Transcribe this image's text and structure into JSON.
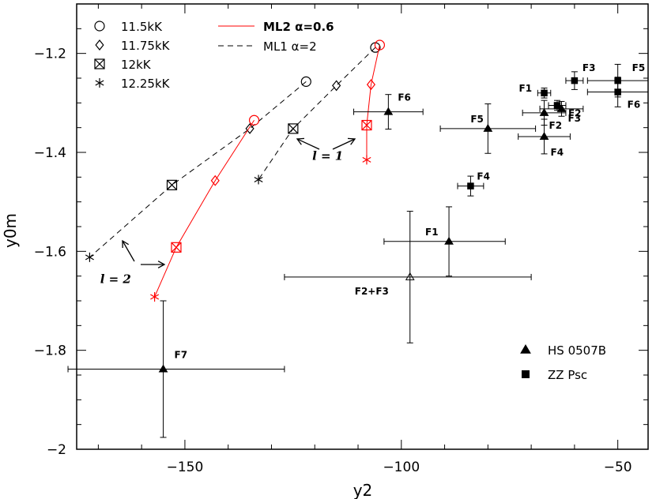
{
  "chart_data": {
    "type": "scatter",
    "xlabel": "y2",
    "ylabel": "y0m",
    "xlim": [
      -175,
      -43
    ],
    "ylim": [
      -2.0,
      -1.1
    ],
    "xticks": [
      -150,
      -100,
      -50
    ],
    "yticks": [
      -2.0,
      -1.8,
      -1.6,
      -1.4,
      -1.2
    ],
    "xtick_labels": [
      "−150",
      "−100",
      "−50"
    ],
    "ytick_labels": [
      "−2",
      "−1.8",
      "−1.6",
      "−1.4",
      "−1.2"
    ],
    "grid": false,
    "temperature_legend": [
      {
        "marker": "circle",
        "label": "11.5kK"
      },
      {
        "marker": "diamond",
        "label": "11.75kK"
      },
      {
        "marker": "boxx",
        "label": "12kK"
      },
      {
        "marker": "asterisk",
        "label": "12.25kK"
      }
    ],
    "model_legend": [
      {
        "label": "ML2  α=0.6",
        "color": "#ff0000",
        "dash": false
      },
      {
        "label": "ML1  α=2",
        "color": "#000000",
        "dash": true
      }
    ],
    "star_legend": [
      {
        "marker": "triangle",
        "label": "HS  0507B"
      },
      {
        "marker": "square",
        "label": "ZZ  Psc"
      }
    ],
    "model_lines": [
      {
        "name": "ML1 l=2",
        "color": "#000000",
        "dash": true,
        "x": [
          -122,
          -135,
          -153,
          -172
        ],
        "y": [
          -1.257,
          -1.352,
          -1.466,
          -1.612
        ],
        "markers": [
          "circle",
          "diamond",
          "boxx",
          "asterisk"
        ]
      },
      {
        "name": "ML1 l=1",
        "color": "#000000",
        "dash": true,
        "x": [
          -106,
          -115,
          -125,
          -133
        ],
        "y": [
          -1.188,
          -1.265,
          -1.352,
          -1.455
        ],
        "markers": [
          "circle",
          "diamond",
          "boxx",
          "asterisk"
        ]
      },
      {
        "name": "ML2 l=2",
        "color": "#ff0000",
        "dash": false,
        "x": [
          -134,
          -143,
          -152,
          -157
        ],
        "y": [
          -1.335,
          -1.457,
          -1.592,
          -1.692
        ],
        "markers": [
          "circle",
          "diamond",
          "boxx",
          "asterisk"
        ]
      },
      {
        "name": "ML2 l=1",
        "color": "#ff0000",
        "dash": false,
        "x": [
          -105,
          -107,
          -108,
          -108
        ],
        "y": [
          -1.183,
          -1.263,
          -1.345,
          -1.415
        ],
        "markers": [
          "circle",
          "diamond",
          "boxx",
          "asterisk"
        ]
      }
    ],
    "hs0507b": [
      {
        "label": "F6",
        "x": -103,
        "y": -1.318,
        "xerr": [
          8,
          8
        ],
        "yerr": [
          0.035,
          0.035
        ],
        "filled": true
      },
      {
        "label": "F5",
        "x": -80,
        "y": -1.352,
        "xerr": [
          11,
          11
        ],
        "yerr": [
          0.05,
          0.05
        ],
        "filled": true
      },
      {
        "label": "F2",
        "x": -67,
        "y": -1.32,
        "xerr": [
          5,
          5
        ],
        "yerr": [
          0.025,
          0.025
        ],
        "filled": true
      },
      {
        "label": "F3",
        "x": -63,
        "y": -1.312,
        "xerr": [
          5,
          5
        ],
        "yerr": [
          0.015,
          0.015
        ],
        "filled": true
      },
      {
        "label": "F4",
        "x": -67,
        "y": -1.368,
        "xerr": [
          6,
          6
        ],
        "yerr": [
          0.035,
          0.035
        ],
        "filled": true
      },
      {
        "label": "F1",
        "x": -89,
        "y": -1.58,
        "xerr": [
          15,
          13
        ],
        "yerr": [
          0.07,
          0.07
        ],
        "filled": true
      },
      {
        "label": "F2+F3",
        "x": -98,
        "y": -1.652,
        "xerr": [
          29,
          28
        ],
        "yerr": [
          0.133,
          0.133
        ],
        "filled": false
      },
      {
        "label": "F7",
        "x": -155,
        "y": -1.838,
        "xerr": [
          22,
          28
        ],
        "yerr": [
          0.138,
          0.138
        ],
        "filled": true
      }
    ],
    "zzpsc": [
      {
        "label": "F1",
        "x": -67,
        "y": -1.28,
        "xerr": [
          1.5,
          1.5
        ],
        "yerr": [
          0.01,
          0.01
        ]
      },
      {
        "label": "F2",
        "x": -64,
        "y": -1.305,
        "xerr": [
          2,
          2
        ],
        "yerr": [
          0.01,
          0.01
        ]
      },
      {
        "label": "F3",
        "x": -60,
        "y": -1.255,
        "xerr": [
          2,
          2
        ],
        "yerr": [
          0.018,
          0.018
        ]
      },
      {
        "label": "F5",
        "x": -50,
        "y": -1.255,
        "xerr": [
          7,
          7
        ],
        "yerr": [
          0.033,
          0.033
        ]
      },
      {
        "label": "F6",
        "x": -50,
        "y": -1.278,
        "xerr": [
          7,
          7
        ],
        "yerr": [
          0.03,
          0.03
        ]
      },
      {
        "label": "F4",
        "x": -84,
        "y": -1.468,
        "xerr": [
          3,
          3
        ],
        "yerr": [
          0.02,
          0.02
        ]
      }
    ],
    "annotations": [
      {
        "text": "l = 1",
        "x": -117,
        "y": -1.415
      },
      {
        "text": "l = 2",
        "x": -166,
        "y": -1.664
      }
    ]
  }
}
